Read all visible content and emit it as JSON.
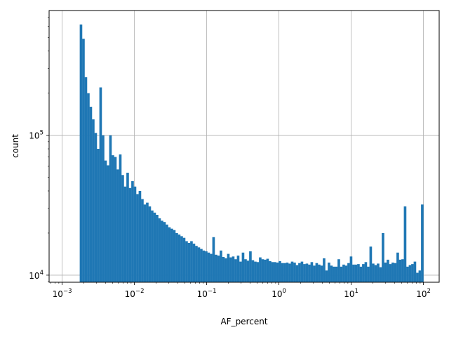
{
  "chart_data": {
    "type": "bar",
    "title": "",
    "xlabel": "AF_percent",
    "ylabel": "count",
    "xscale": "log",
    "yscale": "log",
    "xlim": [
      0.00066,
      165
    ],
    "ylim": [
      8900,
      780000
    ],
    "grid": true,
    "bar_color": "#1f77b4",
    "x_tick_labels": [
      {
        "base": "10",
        "exp": "−3",
        "value": 0.001
      },
      {
        "base": "10",
        "exp": "−2",
        "value": 0.01
      },
      {
        "base": "10",
        "exp": "−1",
        "value": 0.1
      },
      {
        "base": "10",
        "exp": "0",
        "value": 1
      },
      {
        "base": "10",
        "exp": "1",
        "value": 10
      },
      {
        "base": "10",
        "exp": "2",
        "value": 100
      }
    ],
    "y_tick_labels": [
      {
        "base": "10",
        "exp": "4",
        "value": 10000
      },
      {
        "base": "10",
        "exp": "5",
        "value": 100000
      }
    ],
    "x_range": [
      0.00175,
      100
    ],
    "values": [
      620000,
      490000,
      260000,
      200000,
      160000,
      130000,
      104000,
      80000,
      220000,
      100000,
      66000,
      61000,
      100000,
      72000,
      70000,
      57000,
      73000,
      52000,
      43000,
      54000,
      42000,
      47000,
      43000,
      38000,
      40000,
      35000,
      32000,
      33000,
      31000,
      29000,
      28000,
      27000,
      25500,
      24500,
      24000,
      23000,
      22000,
      21500,
      21000,
      20000,
      19500,
      19000,
      18500,
      17500,
      17000,
      17500,
      16800,
      16200,
      15800,
      15400,
      15000,
      14800,
      14500,
      14200,
      18700,
      14000,
      13800,
      15000,
      13500,
      13200,
      14200,
      13400,
      13600,
      13000,
      13800,
      12500,
      14500,
      13000,
      12700,
      14800,
      12800,
      12500,
      12400,
      13400,
      13000,
      12900,
      13100,
      12600,
      12400,
      12400,
      12300,
      12600,
      12200,
      12200,
      12300,
      12100,
      12500,
      12300,
      11800,
      12200,
      12500,
      12000,
      12100,
      11900,
      12400,
      11700,
      12200,
      11900,
      11700,
      13200,
      10800,
      12300,
      11700,
      11500,
      11500,
      13000,
      11500,
      11900,
      11700,
      12200,
      13600,
      11900,
      11900,
      12000,
      11500,
      12000,
      12400,
      11500,
      16000,
      12100,
      11800,
      12100,
      11400,
      20000,
      12300,
      12900,
      12000,
      12300,
      12200,
      14500,
      12900,
      13000,
      31000,
      11500,
      11800,
      12000,
      12500,
      10400,
      10800,
      32000
    ]
  }
}
